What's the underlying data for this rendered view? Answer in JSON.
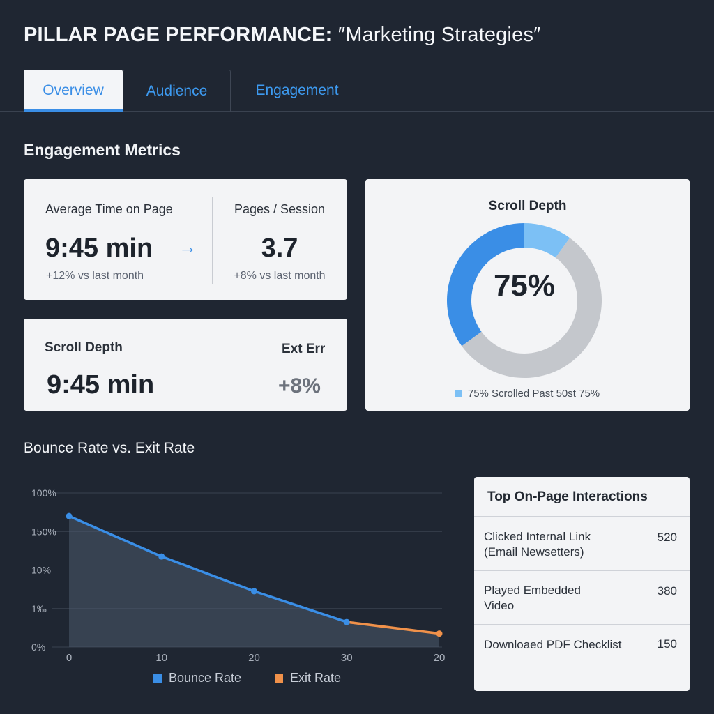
{
  "header": {
    "title_bold": "PILLAR PAGE PERFORMANCE:",
    "title_rest": " ″Marketing Strategies″"
  },
  "tabs": [
    {
      "label": "Overview"
    },
    {
      "label": "Audience"
    },
    {
      "label": "Engagement"
    }
  ],
  "section_title": "Engagement Metrics",
  "metrics_card": {
    "avg_time": {
      "label": "Average Time on Page",
      "value": "9:45 min",
      "delta": "+12% vs last month"
    },
    "pages_session": {
      "label": "Pages / Session",
      "value": "3.7",
      "delta": "+8% vs last month"
    }
  },
  "scroll_card": {
    "left": {
      "label": "Scroll Depth",
      "value": "9:45 min"
    },
    "right": {
      "label": "Ext Err",
      "value": "+8%"
    }
  },
  "donut": {
    "title": "Scroll Depth",
    "center": "75%",
    "legend": "75% Scrolled Past 50st 75%",
    "segments": [
      {
        "fraction": 0.1,
        "color": "#7cc0f5"
      },
      {
        "fraction": 0.55,
        "color": "#c4c7cc"
      },
      {
        "fraction": 0.35,
        "color": "#3a8ee6"
      }
    ]
  },
  "chart_data": {
    "type": "line",
    "title": "Bounce Rate vs. Exit Rate",
    "y_tick_labels": [
      "100%",
      "150%",
      "10%",
      "1‰",
      "0%"
    ],
    "x_tick_labels": [
      "0",
      "10",
      "20",
      "30",
      "20"
    ],
    "series": [
      {
        "name": "Bounce Rate",
        "color": "#3a8ee6",
        "points": [
          [
            0,
            68
          ],
          [
            1,
            47
          ],
          [
            2,
            29
          ],
          [
            3,
            13
          ]
        ]
      },
      {
        "name": "Exit Rate",
        "color": "#f0914a",
        "points": [
          [
            3,
            13
          ],
          [
            4,
            7
          ]
        ]
      }
    ],
    "ylim": [
      0,
      80
    ],
    "grid": true,
    "legend_position": "bottom"
  },
  "interactions": {
    "title": "Top On-Page Interactions",
    "rows": [
      {
        "name": "Clicked Internal Link\n(Email Newsetters)",
        "value": "520"
      },
      {
        "name": "Played Embedded\nVideo",
        "value": "380"
      },
      {
        "name": "Downloaed PDF Checklist",
        "value": "150"
      }
    ]
  }
}
